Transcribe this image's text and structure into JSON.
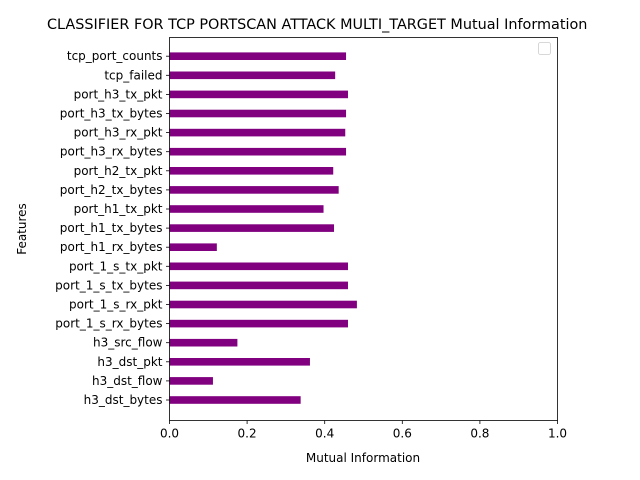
{
  "chart_data": {
    "type": "bar",
    "orientation": "horizontal",
    "title": "CLASSIFIER FOR TCP PORTSCAN ATTACK MULTI_TARGET Mutual Information",
    "xlabel": "Mutual Information",
    "ylabel": "Features",
    "xlim": [
      0,
      1.0
    ],
    "xticks": [
      "0.0",
      "0.2",
      "0.4",
      "0.6",
      "0.8",
      "1.0"
    ],
    "grid": false,
    "legend": "top-right",
    "categories": [
      "h3_dst_bytes",
      "h3_dst_flow",
      "h3_dst_pkt",
      "h3_src_flow",
      "port_1_s_rx_bytes",
      "port_1_s_rx_pkt",
      "port_1_s_tx_bytes",
      "port_1_s_tx_pkt",
      "port_h1_rx_bytes",
      "port_h1_tx_bytes",
      "port_h1_tx_pkt",
      "port_h2_tx_bytes",
      "port_h2_tx_pkt",
      "port_h3_rx_bytes",
      "port_h3_rx_pkt",
      "port_h3_tx_bytes",
      "port_h3_tx_pkt",
      "tcp_failed",
      "tcp_port_counts"
    ],
    "values": [
      0.338,
      0.112,
      0.362,
      0.175,
      0.46,
      0.483,
      0.46,
      0.46,
      0.122,
      0.424,
      0.397,
      0.436,
      0.422,
      0.455,
      0.453,
      0.455,
      0.46,
      0.427,
      0.455
    ],
    "bar_color": "#800080"
  }
}
